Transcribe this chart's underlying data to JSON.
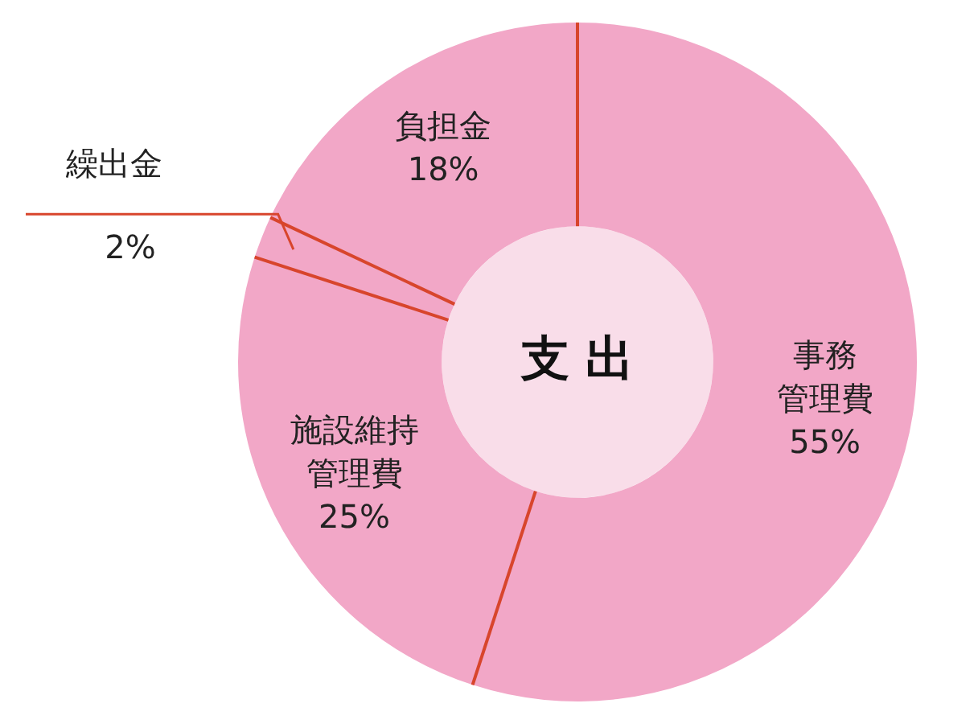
{
  "chart_data": {
    "type": "donut",
    "title": "支 出",
    "categories": [
      "事務管理費",
      "施設維持管理費",
      "繰出金",
      "負担金"
    ],
    "values": [
      55,
      25,
      2,
      18
    ],
    "value_labels": [
      "55%",
      "25%",
      "2%",
      "18%"
    ],
    "colors": [
      "#f2a7c7",
      "#f2a7c7",
      "#f2a7c7",
      "#f2a7c7"
    ],
    "legend": false
  }
}
